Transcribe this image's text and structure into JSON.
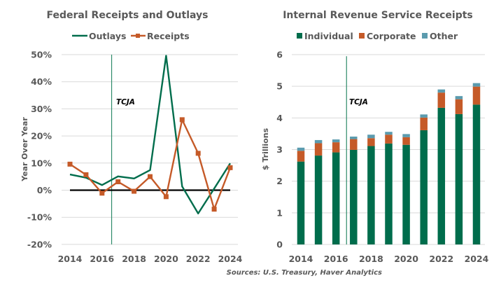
{
  "colors": {
    "outlays": "#006d4c",
    "receipts": "#c55a28",
    "individual": "#006d4c",
    "corporate": "#c55a28",
    "other": "#5b9bae",
    "tcja_line": "#2e8b6a",
    "zero_line": "#000000",
    "text": "#595959"
  },
  "source": "Sources: U.S. Treasury, Haver Analytics",
  "chart_data": [
    {
      "type": "line",
      "title": "Federal Receipts and Outlays",
      "xlabel": "",
      "ylabel": "Year Over Year",
      "x": [
        2014,
        2015,
        2016,
        2017,
        2018,
        2019,
        2020,
        2021,
        2022,
        2023,
        2024
      ],
      "xticks": [
        "2014",
        "2016",
        "2018",
        "2020",
        "2022",
        "2024"
      ],
      "yticks": [
        "-20%",
        "-10%",
        "0%",
        "10%",
        "20%",
        "30%",
        "40%",
        "50%"
      ],
      "ylim": [
        -20,
        50
      ],
      "grid": true,
      "legend": "top-center",
      "series": [
        {
          "name": "Outlays",
          "marker": "none",
          "values": [
            5.8,
            4.6,
            1.9,
            5.1,
            4.3,
            7.4,
            49.6,
            1.4,
            -8.6,
            0.6,
            9.9
          ]
        },
        {
          "name": "Receipts",
          "marker": "square",
          "values": [
            9.6,
            5.7,
            -1.1,
            3.1,
            -0.4,
            5.0,
            -2.4,
            26.0,
            13.6,
            -7.0,
            8.3
          ]
        }
      ],
      "annotations": [
        {
          "text": "TCJA",
          "x": 2016.6
        }
      ],
      "reference_line": {
        "y": 0
      }
    },
    {
      "type": "bar",
      "stacked": true,
      "title": "Internal Revenue Service Receipts",
      "xlabel": "",
      "ylabel": "$ Trillions",
      "categories": [
        "2014",
        "2015",
        "2016",
        "2017",
        "2018",
        "2019",
        "2020",
        "2021",
        "2022",
        "2023",
        "2024"
      ],
      "xticks": [
        "2014",
        "2016",
        "2018",
        "2020",
        "2022",
        "2024"
      ],
      "yticks": [
        "0",
        "1",
        "2",
        "3",
        "4",
        "5",
        "6"
      ],
      "ylim": [
        0,
        6
      ],
      "grid": true,
      "legend": "top-center",
      "series": [
        {
          "name": "Individual",
          "values": [
            2.62,
            2.81,
            2.91,
            2.99,
            3.11,
            3.19,
            3.15,
            3.61,
            4.32,
            4.12,
            4.42
          ]
        },
        {
          "name": "Corporate",
          "values": [
            0.34,
            0.39,
            0.32,
            0.34,
            0.25,
            0.28,
            0.24,
            0.4,
            0.48,
            0.47,
            0.57
          ]
        },
        {
          "name": "Other",
          "values": [
            0.1,
            0.1,
            0.09,
            0.08,
            0.11,
            0.09,
            0.1,
            0.1,
            0.1,
            0.1,
            0.11
          ]
        }
      ],
      "annotations": [
        {
          "text": "TCJA",
          "x": 2016.6
        }
      ]
    }
  ]
}
